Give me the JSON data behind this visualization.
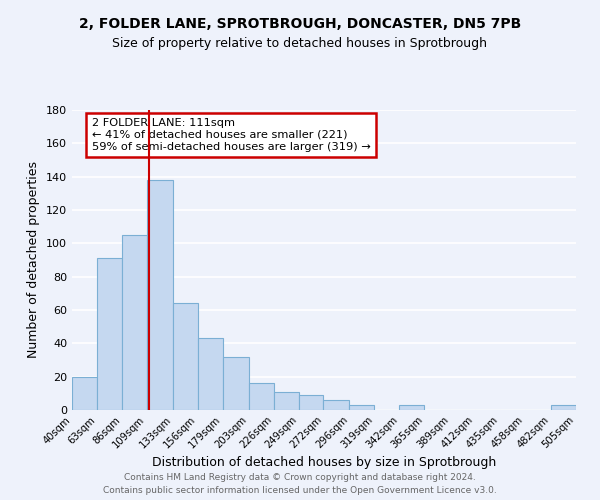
{
  "title": "2, FOLDER LANE, SPROTBROUGH, DONCASTER, DN5 7PB",
  "subtitle": "Size of property relative to detached houses in Sprotbrough",
  "xlabel": "Distribution of detached houses by size in Sprotbrough",
  "ylabel": "Number of detached properties",
  "bar_color": "#c5d8f0",
  "bar_edge_color": "#7bafd4",
  "bins": [
    40,
    63,
    86,
    109,
    133,
    156,
    179,
    203,
    226,
    249,
    272,
    296,
    319,
    342,
    365,
    389,
    412,
    435,
    458,
    482,
    505
  ],
  "counts": [
    20,
    91,
    105,
    138,
    64,
    43,
    32,
    16,
    11,
    9,
    6,
    3,
    0,
    3,
    0,
    0,
    0,
    0,
    0,
    3
  ],
  "tick_labels": [
    "40sqm",
    "63sqm",
    "86sqm",
    "109sqm",
    "133sqm",
    "156sqm",
    "179sqm",
    "203sqm",
    "226sqm",
    "249sqm",
    "272sqm",
    "296sqm",
    "319sqm",
    "342sqm",
    "365sqm",
    "389sqm",
    "412sqm",
    "435sqm",
    "458sqm",
    "482sqm",
    "505sqm"
  ],
  "vline_x": 111,
  "vline_color": "#cc0000",
  "annotation_text": "2 FOLDER LANE: 111sqm\n← 41% of detached houses are smaller (221)\n59% of semi-detached houses are larger (319) →",
  "annotation_box_color": "#ffffff",
  "annotation_box_edge": "#cc0000",
  "ylim": [
    0,
    180
  ],
  "yticks": [
    0,
    20,
    40,
    60,
    80,
    100,
    120,
    140,
    160,
    180
  ],
  "footer_line1": "Contains HM Land Registry data © Crown copyright and database right 2024.",
  "footer_line2": "Contains public sector information licensed under the Open Government Licence v3.0.",
  "background_color": "#eef2fb",
  "grid_color": "#ffffff"
}
